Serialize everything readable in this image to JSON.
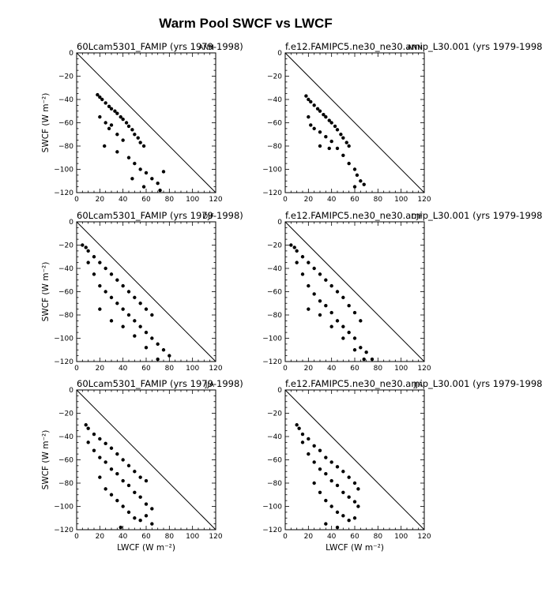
{
  "figure": {
    "title": "Warm Pool SWCF vs LWCF",
    "xlabel": "LWCF",
    "ylabel": "SWCF",
    "units": "(W m⁻²)",
    "xticks": [
      "0",
      "20",
      "40",
      "60",
      "80",
      "100",
      "120"
    ],
    "yticks": [
      "0",
      "−20",
      "−40",
      "−60",
      "−80",
      "−100",
      "−120"
    ]
  },
  "chart_data": [
    {
      "type": "scatter",
      "title": "60Lcam5301_FAMIP (yrs 1979-1998)",
      "season": "ANN",
      "xlim": [
        0,
        120
      ],
      "ylim": [
        -120,
        0
      ],
      "reference_line": "y = -x",
      "points_approx": [
        [
          18,
          -36
        ],
        [
          20,
          -38
        ],
        [
          22,
          -40
        ],
        [
          25,
          -43
        ],
        [
          28,
          -46
        ],
        [
          30,
          -48
        ],
        [
          33,
          -50
        ],
        [
          35,
          -52
        ],
        [
          38,
          -55
        ],
        [
          40,
          -57
        ],
        [
          43,
          -60
        ],
        [
          45,
          -63
        ],
        [
          48,
          -66
        ],
        [
          50,
          -70
        ],
        [
          53,
          -73
        ],
        [
          55,
          -77
        ],
        [
          58,
          -80
        ],
        [
          20,
          -55
        ],
        [
          25,
          -60
        ],
        [
          28,
          -65
        ],
        [
          30,
          -62
        ],
        [
          35,
          -70
        ],
        [
          40,
          -75
        ],
        [
          24,
          -80
        ],
        [
          35,
          -85
        ],
        [
          45,
          -90
        ],
        [
          50,
          -95
        ],
        [
          55,
          -100
        ],
        [
          60,
          -103
        ],
        [
          65,
          -108
        ],
        [
          70,
          -112
        ],
        [
          75,
          -102
        ],
        [
          72,
          -118
        ],
        [
          58,
          -115
        ],
        [
          48,
          -108
        ]
      ]
    },
    {
      "type": "scatter",
      "title": "f.e12.FAMIPC5.ne30_ne30.amip_L30.001 (yrs 1979-1998)",
      "season": "ANN",
      "xlim": [
        0,
        120
      ],
      "ylim": [
        -120,
        0
      ],
      "reference_line": "y = -x",
      "points_approx": [
        [
          18,
          -37
        ],
        [
          20,
          -40
        ],
        [
          22,
          -42
        ],
        [
          25,
          -45
        ],
        [
          28,
          -48
        ],
        [
          30,
          -50
        ],
        [
          33,
          -53
        ],
        [
          35,
          -55
        ],
        [
          38,
          -58
        ],
        [
          40,
          -60
        ],
        [
          43,
          -63
        ],
        [
          45,
          -66
        ],
        [
          48,
          -70
        ],
        [
          50,
          -73
        ],
        [
          53,
          -77
        ],
        [
          55,
          -80
        ],
        [
          20,
          -55
        ],
        [
          22,
          -62
        ],
        [
          25,
          -65
        ],
        [
          30,
          -68
        ],
        [
          35,
          -72
        ],
        [
          40,
          -76
        ],
        [
          45,
          -82
        ],
        [
          50,
          -88
        ],
        [
          55,
          -95
        ],
        [
          60,
          -100
        ],
        [
          62,
          -105
        ],
        [
          65,
          -110
        ],
        [
          60,
          -115
        ],
        [
          68,
          -113
        ],
        [
          30,
          -80
        ],
        [
          38,
          -82
        ]
      ]
    },
    {
      "type": "scatter",
      "title": "60Lcam5301_FAMIP (yrs 1979-1998)",
      "season": "DJF",
      "xlim": [
        0,
        120
      ],
      "ylim": [
        -120,
        0
      ],
      "reference_line": "y = -x",
      "points_approx": [
        [
          5,
          -20
        ],
        [
          8,
          -22
        ],
        [
          10,
          -25
        ],
        [
          15,
          -30
        ],
        [
          20,
          -35
        ],
        [
          25,
          -40
        ],
        [
          30,
          -45
        ],
        [
          35,
          -50
        ],
        [
          40,
          -55
        ],
        [
          45,
          -60
        ],
        [
          50,
          -65
        ],
        [
          55,
          -70
        ],
        [
          60,
          -75
        ],
        [
          65,
          -80
        ],
        [
          10,
          -35
        ],
        [
          15,
          -45
        ],
        [
          20,
          -55
        ],
        [
          25,
          -60
        ],
        [
          30,
          -65
        ],
        [
          35,
          -70
        ],
        [
          40,
          -75
        ],
        [
          45,
          -80
        ],
        [
          50,
          -85
        ],
        [
          55,
          -90
        ],
        [
          60,
          -95
        ],
        [
          65,
          -100
        ],
        [
          70,
          -105
        ],
        [
          75,
          -110
        ],
        [
          80,
          -115
        ],
        [
          20,
          -75
        ],
        [
          30,
          -85
        ],
        [
          40,
          -90
        ],
        [
          50,
          -98
        ],
        [
          60,
          -108
        ],
        [
          70,
          -118
        ]
      ]
    },
    {
      "type": "scatter",
      "title": "f.e12.FAMIPC5.ne30_ne30.amip_L30.001 (yrs 1979-1998)",
      "season": "DJF",
      "xlim": [
        0,
        120
      ],
      "ylim": [
        -120,
        0
      ],
      "reference_line": "y = -x",
      "points_approx": [
        [
          5,
          -20
        ],
        [
          8,
          -22
        ],
        [
          10,
          -25
        ],
        [
          15,
          -30
        ],
        [
          20,
          -35
        ],
        [
          25,
          -40
        ],
        [
          30,
          -45
        ],
        [
          35,
          -50
        ],
        [
          40,
          -55
        ],
        [
          45,
          -60
        ],
        [
          50,
          -65
        ],
        [
          55,
          -72
        ],
        [
          60,
          -78
        ],
        [
          65,
          -85
        ],
        [
          10,
          -35
        ],
        [
          15,
          -45
        ],
        [
          20,
          -55
        ],
        [
          25,
          -62
        ],
        [
          30,
          -68
        ],
        [
          35,
          -72
        ],
        [
          40,
          -78
        ],
        [
          45,
          -85
        ],
        [
          50,
          -90
        ],
        [
          55,
          -95
        ],
        [
          60,
          -100
        ],
        [
          65,
          -108
        ],
        [
          70,
          -112
        ],
        [
          75,
          -118
        ],
        [
          20,
          -75
        ],
        [
          30,
          -80
        ],
        [
          40,
          -90
        ],
        [
          50,
          -100
        ],
        [
          60,
          -110
        ],
        [
          68,
          -118
        ]
      ]
    },
    {
      "type": "scatter",
      "title": "60Lcam5301_FAMIP (yrs 1979-1998)",
      "season": "JJA",
      "xlim": [
        0,
        120
      ],
      "ylim": [
        -120,
        0
      ],
      "reference_line": "y = -x",
      "points_approx": [
        [
          8,
          -30
        ],
        [
          10,
          -33
        ],
        [
          15,
          -38
        ],
        [
          20,
          -42
        ],
        [
          25,
          -46
        ],
        [
          30,
          -50
        ],
        [
          35,
          -55
        ],
        [
          40,
          -60
        ],
        [
          45,
          -65
        ],
        [
          50,
          -70
        ],
        [
          55,
          -75
        ],
        [
          60,
          -78
        ],
        [
          10,
          -45
        ],
        [
          15,
          -52
        ],
        [
          20,
          -58
        ],
        [
          25,
          -62
        ],
        [
          30,
          -68
        ],
        [
          35,
          -72
        ],
        [
          40,
          -78
        ],
        [
          45,
          -82
        ],
        [
          50,
          -88
        ],
        [
          55,
          -92
        ],
        [
          60,
          -98
        ],
        [
          65,
          -102
        ],
        [
          20,
          -75
        ],
        [
          25,
          -85
        ],
        [
          30,
          -90
        ],
        [
          35,
          -95
        ],
        [
          40,
          -100
        ],
        [
          45,
          -105
        ],
        [
          50,
          -110
        ],
        [
          55,
          -112
        ],
        [
          60,
          -108
        ],
        [
          65,
          -115
        ],
        [
          38,
          -118
        ]
      ]
    },
    {
      "type": "scatter",
      "title": "f.e12.FAMIPC5.ne30_ne30.amip_L30.001 (yrs 1979-1998)",
      "season": "JJA",
      "xlim": [
        0,
        120
      ],
      "ylim": [
        -120,
        0
      ],
      "reference_line": "y = -x",
      "points_approx": [
        [
          10,
          -30
        ],
        [
          12,
          -33
        ],
        [
          15,
          -38
        ],
        [
          20,
          -42
        ],
        [
          25,
          -48
        ],
        [
          30,
          -52
        ],
        [
          35,
          -58
        ],
        [
          40,
          -62
        ],
        [
          45,
          -66
        ],
        [
          50,
          -70
        ],
        [
          55,
          -75
        ],
        [
          60,
          -80
        ],
        [
          63,
          -85
        ],
        [
          15,
          -45
        ],
        [
          20,
          -55
        ],
        [
          25,
          -62
        ],
        [
          30,
          -68
        ],
        [
          35,
          -72
        ],
        [
          40,
          -78
        ],
        [
          45,
          -82
        ],
        [
          50,
          -88
        ],
        [
          55,
          -92
        ],
        [
          60,
          -96
        ],
        [
          63,
          -100
        ],
        [
          25,
          -80
        ],
        [
          30,
          -88
        ],
        [
          35,
          -95
        ],
        [
          40,
          -100
        ],
        [
          45,
          -105
        ],
        [
          50,
          -108
        ],
        [
          55,
          -112
        ],
        [
          60,
          -110
        ],
        [
          35,
          -115
        ],
        [
          45,
          -118
        ]
      ]
    }
  ]
}
